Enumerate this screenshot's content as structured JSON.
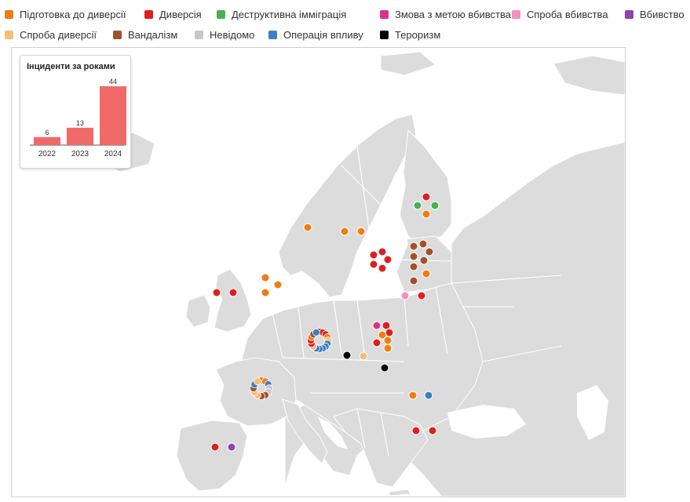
{
  "legend": [
    {
      "label": "Підготовка до диверсії",
      "color": "#ee7d13"
    },
    {
      "label": "Диверсія",
      "color": "#dc2020"
    },
    {
      "label": "Деструктивна імміграція",
      "color": "#4caf50"
    },
    {
      "label": "Змова з метою вбивства",
      "color": "#e0308a"
    },
    {
      "label": "Спроба вбивства",
      "color": "#f48fc2"
    },
    {
      "label": "Вбивство",
      "color": "#8e44ad"
    },
    {
      "label": "Спроба диверсії",
      "color": "#f7bc78"
    },
    {
      "label": "Вандалізм",
      "color": "#a0522d"
    },
    {
      "label": "Невідомо",
      "color": "#c8c8c8"
    },
    {
      "label": "Операція впливу",
      "color": "#3b7fc4"
    },
    {
      "label": "Тероризм",
      "color": "#000000"
    }
  ],
  "map": {
    "background": "#ffffff",
    "land_color": "#dcdcdc",
    "border_color": "#ffffff"
  },
  "inset": {
    "title": "Інциденти за роками",
    "bar_color": "#f06a6a"
  },
  "chart_data": {
    "type": "bar",
    "title": "Інциденти за роками",
    "categories": [
      "2022",
      "2023",
      "2024"
    ],
    "values": [
      6,
      13,
      44
    ],
    "ylim": [
      0,
      44
    ]
  }
}
